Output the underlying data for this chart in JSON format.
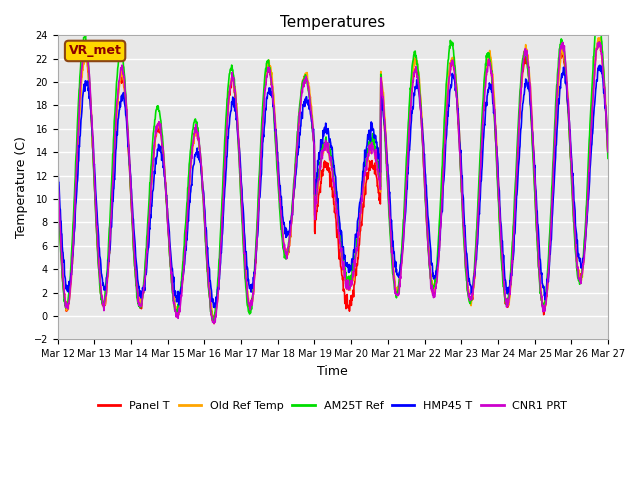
{
  "title": "Temperatures",
  "xlabel": "Time",
  "ylabel": "Temperature (C)",
  "ylim": [
    -2,
    24
  ],
  "yticks": [
    -2,
    0,
    2,
    4,
    6,
    8,
    10,
    12,
    14,
    16,
    18,
    20,
    22,
    24
  ],
  "start_day": 12,
  "end_day": 27,
  "annotation_text": "VR_met",
  "annotation_box_color": "#FFD700",
  "annotation_text_color": "#8B0000",
  "annotation_edge_color": "#8B4513",
  "bg_color": "#E8E8E8",
  "series_colors": {
    "Panel T": "#FF0000",
    "Old Ref Temp": "#FFA500",
    "AM25T Ref": "#00DD00",
    "HMP45 T": "#0000FF",
    "CNR1 PRT": "#CC00CC"
  },
  "series_linewidth": 1.2,
  "grid_color": "#FFFFFF",
  "grid_linewidth": 1.0,
  "tick_fontsize": 7,
  "label_fontsize": 9,
  "title_fontsize": 11
}
